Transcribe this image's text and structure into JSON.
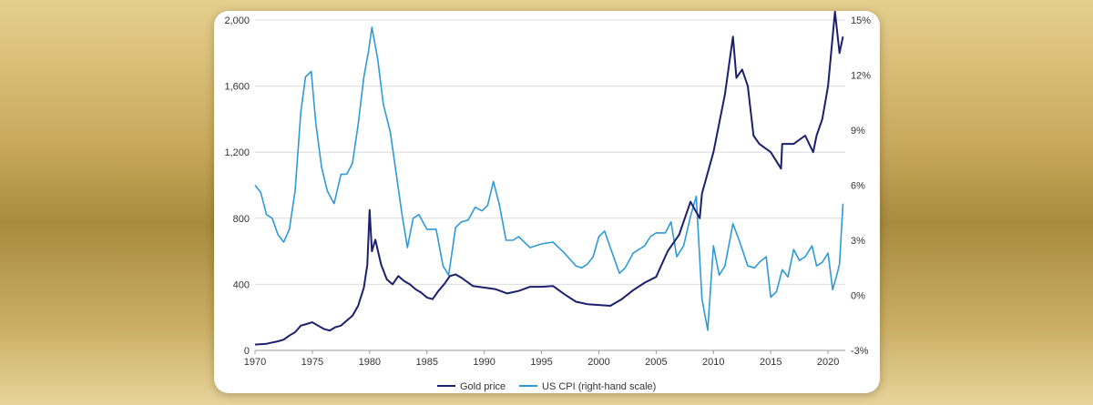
{
  "colors": {
    "gold": "#1a1f6e",
    "cpi": "#2e9ad8",
    "grid": "#dcdcdc",
    "text": "#333333"
  },
  "chart_data": {
    "type": "line",
    "title": "",
    "xlabel": "",
    "ylabel": "",
    "x_ticks": [
      "1970",
      "1975",
      "1980",
      "1985",
      "1990",
      "1995",
      "2000",
      "2005",
      "2010",
      "2015",
      "2020"
    ],
    "x_range": [
      1970,
      2021.5
    ],
    "y_left_ticks": [
      "0",
      "400",
      "800",
      "1,200",
      "1,600",
      "2,000"
    ],
    "y_left_range": [
      0,
      2000
    ],
    "y_right_ticks": [
      "-3%",
      "0%",
      "3%",
      "6%",
      "9%",
      "12%",
      "15%"
    ],
    "y_right_range": [
      -3,
      15
    ],
    "grid": true,
    "legend_position": "bottom",
    "series": [
      {
        "name": "Gold price",
        "axis": "left",
        "x": [
          1970,
          1971,
          1972,
          1972.5,
          1973,
          1973.5,
          1974,
          1974.5,
          1975,
          1975.5,
          1976,
          1976.5,
          1977,
          1977.5,
          1978,
          1978.5,
          1979,
          1979.5,
          1979.8,
          1980.0,
          1980.2,
          1980.5,
          1981,
          1981.5,
          1982,
          1982.5,
          1983,
          1983.5,
          1984,
          1984.5,
          1985,
          1985.5,
          1986,
          1986.5,
          1987,
          1987.5,
          1988,
          1989,
          1990,
          1991,
          1992,
          1993,
          1994,
          1995,
          1996,
          1997,
          1998,
          1999,
          2000,
          2001,
          2002,
          2003,
          2004,
          2005,
          2006,
          2007,
          2008,
          2008.8,
          2009,
          2010,
          2011,
          2011.7,
          2012,
          2012.5,
          2013,
          2013.5,
          2014,
          2015,
          2015.9,
          2016,
          2017,
          2018,
          2018.7,
          2019,
          2019.5,
          2020,
          2020.6,
          2021,
          2021.3
        ],
        "values": [
          35,
          40,
          55,
          65,
          90,
          110,
          150,
          160,
          170,
          150,
          130,
          120,
          140,
          150,
          180,
          210,
          270,
          380,
          520,
          850,
          600,
          670,
          520,
          430,
          400,
          450,
          420,
          400,
          370,
          350,
          320,
          310,
          360,
          400,
          450,
          460,
          440,
          390,
          380,
          370,
          345,
          360,
          385,
          385,
          390,
          340,
          295,
          280,
          275,
          270,
          310,
          365,
          410,
          445,
          600,
          700,
          900,
          800,
          950,
          1200,
          1550,
          1900,
          1650,
          1700,
          1600,
          1300,
          1250,
          1200,
          1100,
          1250,
          1250,
          1300,
          1200,
          1300,
          1400,
          1600,
          2050,
          1800,
          1900
        ]
      },
      {
        "name": "US CPI (right-hand scale)",
        "axis": "right",
        "x": [
          1970,
          1970.5,
          1971,
          1971.5,
          1972,
          1972.5,
          1973,
          1973.5,
          1974,
          1974.4,
          1974.9,
          1975.3,
          1975.8,
          1976.3,
          1976.9,
          1977.5,
          1978,
          1978.5,
          1979,
          1979.5,
          1979.9,
          1980.2,
          1980.7,
          1981.2,
          1981.8,
          1982.3,
          1982.8,
          1983.3,
          1983.8,
          1984.3,
          1985,
          1985.8,
          1986.4,
          1986.9,
          1987.5,
          1988,
          1988.6,
          1989.2,
          1989.8,
          1990.3,
          1990.8,
          1991.3,
          1991.9,
          1992.5,
          1993,
          1994,
          1995,
          1996,
          1997,
          1998,
          1998.5,
          1999,
          1999.5,
          2000,
          2000.5,
          2001,
          2001.8,
          2002.3,
          2003,
          2004,
          2004.5,
          2005,
          2005.8,
          2006.3,
          2006.8,
          2007.4,
          2008,
          2008.5,
          2009,
          2009.5,
          2010,
          2010.5,
          2011,
          2011.7,
          2012.3,
          2013,
          2013.6,
          2014,
          2014.6,
          2015,
          2015.5,
          2016,
          2016.5,
          2017,
          2017.5,
          2018,
          2018.6,
          2019,
          2019.5,
          2020,
          2020.4,
          2020.8,
          2021,
          2021.3
        ],
        "values": [
          6.0,
          5.6,
          4.4,
          4.2,
          3.3,
          2.9,
          3.6,
          5.7,
          10.0,
          11.9,
          12.2,
          9.4,
          7.0,
          5.7,
          5.0,
          6.6,
          6.6,
          7.2,
          9.3,
          11.9,
          13.3,
          14.6,
          12.9,
          10.4,
          8.9,
          6.7,
          4.5,
          2.6,
          4.2,
          4.4,
          3.6,
          3.6,
          1.6,
          1.1,
          3.7,
          4.0,
          4.1,
          4.8,
          4.6,
          4.9,
          6.2,
          5.0,
          3.0,
          3.0,
          3.2,
          2.6,
          2.8,
          2.9,
          2.3,
          1.6,
          1.5,
          1.7,
          2.1,
          3.2,
          3.5,
          2.6,
          1.2,
          1.5,
          2.3,
          2.7,
          3.2,
          3.4,
          3.4,
          4.0,
          2.1,
          2.7,
          4.3,
          5.4,
          -0.2,
          -1.9,
          2.7,
          1.1,
          1.6,
          3.9,
          2.9,
          1.6,
          1.5,
          1.8,
          2.1,
          -0.1,
          0.2,
          1.4,
          1.0,
          2.5,
          1.9,
          2.1,
          2.7,
          1.6,
          1.8,
          2.3,
          0.3,
          1.2,
          1.7,
          5.0
        ]
      }
    ]
  }
}
